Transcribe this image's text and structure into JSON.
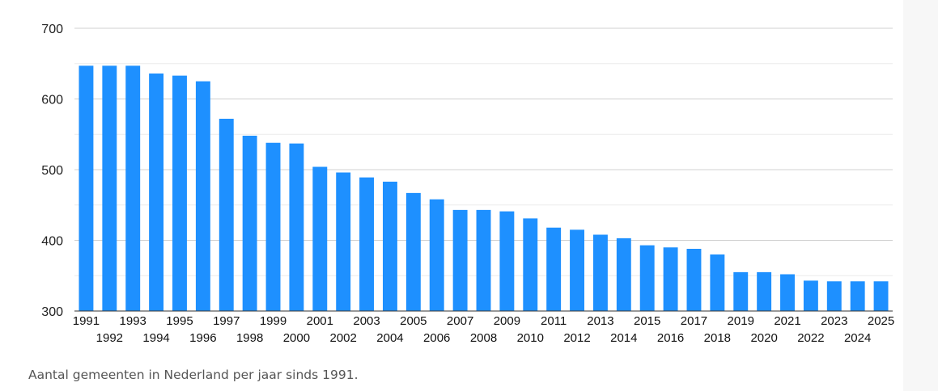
{
  "caption": "Aantal gemeenten in Nederland per jaar sinds 1991.",
  "chart_data": {
    "type": "bar",
    "categories": [
      "1991",
      "1992",
      "1993",
      "1994",
      "1995",
      "1996",
      "1997",
      "1998",
      "1999",
      "2000",
      "2001",
      "2002",
      "2003",
      "2004",
      "2005",
      "2006",
      "2007",
      "2008",
      "2009",
      "2010",
      "2011",
      "2012",
      "2013",
      "2014",
      "2015",
      "2016",
      "2017",
      "2018",
      "2019",
      "2020",
      "2021",
      "2022",
      "2023",
      "2024",
      "2025"
    ],
    "values": [
      647,
      647,
      647,
      636,
      633,
      625,
      572,
      548,
      538,
      537,
      504,
      496,
      489,
      483,
      467,
      458,
      443,
      443,
      441,
      431,
      418,
      415,
      408,
      403,
      393,
      390,
      388,
      380,
      355,
      355,
      352,
      343,
      342,
      342,
      342
    ],
    "ylim": [
      300,
      700
    ],
    "yticks": [
      300,
      400,
      500,
      600,
      700
    ],
    "grid": true,
    "colors": {
      "bar": "#1e90ff",
      "grid": "#d0d0d0",
      "minor_grid": "#ececec"
    }
  }
}
